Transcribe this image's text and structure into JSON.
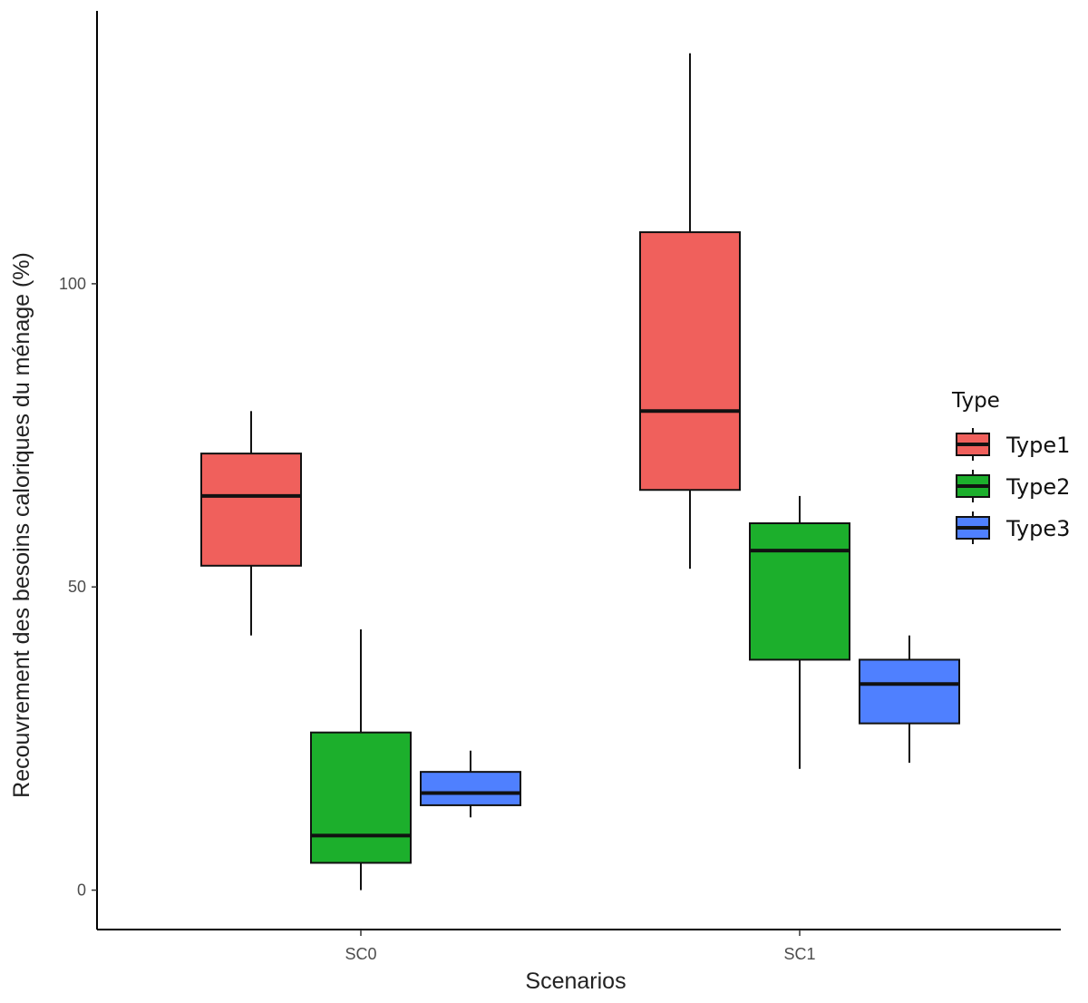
{
  "chart_data": {
    "type": "box",
    "title": "",
    "xlabel": "Scenarios",
    "ylabel": "Recouvrement des besoins caloriques du ménage (%)",
    "ylim": [
      -6.5,
      145
    ],
    "y_ticks": [
      0,
      50,
      100
    ],
    "y_tick_labels": [
      "0",
      "50",
      "100"
    ],
    "categories": [
      "SC0",
      "SC1"
    ],
    "grid": false,
    "legend": {
      "title": "Type",
      "position": "right",
      "entries": [
        "Type1",
        "Type2",
        "Type3"
      ]
    },
    "series": [
      {
        "name": "Type1",
        "color": "#F0605C",
        "values": [
          {
            "category": "SC0",
            "min": 42,
            "q1": 53.5,
            "median": 65,
            "q3": 72,
            "max": 79
          },
          {
            "category": "SC1",
            "min": 53,
            "q1": 66,
            "median": 79,
            "q3": 108.5,
            "max": 138
          }
        ]
      },
      {
        "name": "Type2",
        "color": "#1CAF2C",
        "values": [
          {
            "category": "SC0",
            "min": 0,
            "q1": 4.5,
            "median": 9,
            "q3": 26,
            "max": 43
          },
          {
            "category": "SC1",
            "min": 20,
            "q1": 38,
            "median": 56,
            "q3": 60.5,
            "max": 65
          }
        ]
      },
      {
        "name": "Type3",
        "color": "#4F80FF",
        "values": [
          {
            "category": "SC0",
            "min": 12,
            "q1": 14,
            "median": 16,
            "q3": 19.5,
            "max": 23
          },
          {
            "category": "SC1",
            "min": 21,
            "q1": 27.5,
            "median": 34,
            "q3": 38,
            "max": 42
          }
        ]
      }
    ]
  }
}
